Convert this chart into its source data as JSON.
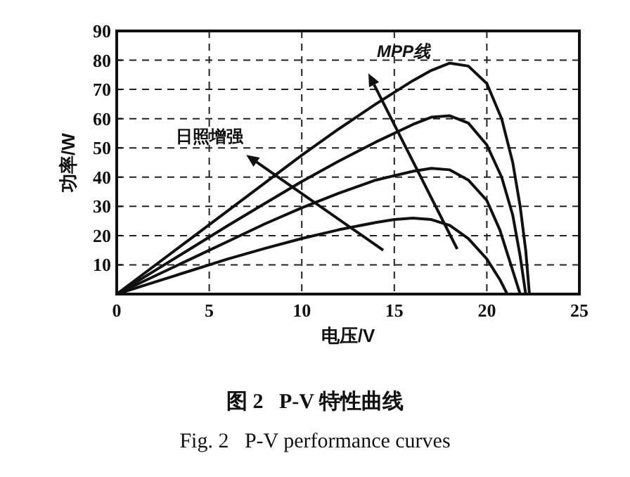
{
  "chart_data": {
    "type": "line",
    "title": "图 2   P-V 特性曲线",
    "subtitle": "Fig. 2   P-V performance curves",
    "xlabel": "电压/V",
    "ylabel": "功率/W",
    "series": [
      {
        "color": "#111111",
        "x": [
          0,
          2,
          4,
          6,
          8,
          10,
          12,
          14,
          16,
          17,
          18,
          19,
          20,
          20.8,
          21.4,
          21.8,
          22.1,
          22.3
        ],
        "values": [
          0,
          9.5,
          19,
          28.5,
          38,
          47.5,
          56.5,
          65,
          73,
          76.5,
          79,
          78,
          72,
          60,
          45,
          30,
          15,
          0
        ]
      },
      {
        "color": "#111111",
        "x": [
          0,
          2,
          4,
          6,
          8,
          10,
          12,
          14,
          16,
          17,
          18,
          19,
          20,
          20.8,
          21.4,
          21.8,
          22.1
        ],
        "values": [
          0,
          7.8,
          15.6,
          23.4,
          31,
          38.5,
          45.5,
          52,
          58,
          60.5,
          61,
          58.5,
          51,
          40,
          27,
          13,
          0
        ]
      },
      {
        "color": "#111111",
        "x": [
          0,
          2,
          4,
          6,
          8,
          10,
          12,
          14,
          16,
          17,
          18,
          19,
          20,
          20.7,
          21.3,
          21.8
        ],
        "values": [
          0,
          6,
          12,
          18,
          24,
          29.5,
          34.5,
          39,
          42,
          43,
          42.5,
          39,
          32,
          22,
          10,
          0
        ]
      },
      {
        "color": "#111111",
        "x": [
          0,
          2,
          4,
          6,
          8,
          10,
          12,
          14,
          15,
          16,
          17,
          18,
          19,
          20,
          20.7,
          21.1
        ],
        "values": [
          0,
          4,
          8,
          12,
          15.6,
          19,
          22,
          24.5,
          25.5,
          26,
          25.5,
          23.5,
          19,
          12,
          5,
          0
        ]
      }
    ],
    "annotations": [
      "MPP线",
      "日照增强"
    ],
    "xlim": [
      0,
      25
    ],
    "ylim": [
      0,
      90
    ],
    "xticks": [
      0,
      5,
      10,
      15,
      20,
      25
    ],
    "yticks": [
      {
        "value": 0,
        "label": null
      },
      10,
      20,
      30,
      40,
      50,
      60,
      70,
      80,
      90
    ],
    "grid": true,
    "line_style": "solid",
    "marker": "none"
  }
}
